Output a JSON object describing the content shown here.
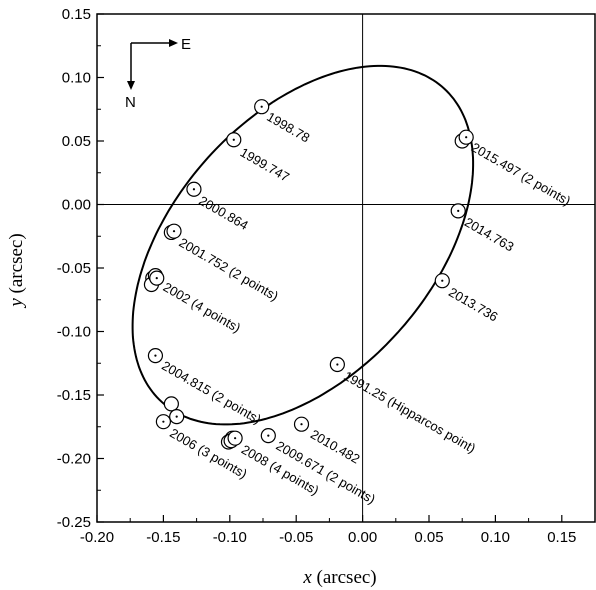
{
  "chart_data": {
    "type": "scatter",
    "xlabel_var": "x",
    "xlabel_unit": " (arcsec)",
    "ylabel_var": "y",
    "ylabel_unit": " (arcsec)",
    "xlim": [
      -0.2,
      0.175
    ],
    "ylim": [
      -0.25,
      0.15
    ],
    "xticks": [
      "-0.20",
      "-0.15",
      "-0.10",
      "-0.05",
      "0.00",
      "0.05",
      "0.10",
      "0.15"
    ],
    "yticks": [
      "-0.25",
      "-0.20",
      "-0.15",
      "-0.10",
      "-0.05",
      "0.00",
      "0.05",
      "0.10",
      "0.15"
    ],
    "compass": {
      "east": "E",
      "north": "N"
    },
    "orbit": {
      "center": [
        -0.045,
        -0.032
      ],
      "semi_major": 0.163,
      "semi_minor": 0.099,
      "rotation_deg": 51
    },
    "points": [
      {
        "x": -0.076,
        "y": 0.077,
        "dot": true
      },
      {
        "x": -0.097,
        "y": 0.051,
        "dot": true
      },
      {
        "x": -0.127,
        "y": 0.012,
        "dot": true
      },
      {
        "x": -0.144,
        "y": -0.022,
        "dot": false
      },
      {
        "x": -0.142,
        "y": -0.021,
        "dot": true
      },
      {
        "x": -0.158,
        "y": -0.058,
        "dot": false
      },
      {
        "x": -0.159,
        "y": -0.063,
        "dot": false
      },
      {
        "x": -0.156,
        "y": -0.056,
        "dot": false
      },
      {
        "x": -0.155,
        "y": -0.058,
        "dot": true
      },
      {
        "x": -0.156,
        "y": -0.119,
        "dot": true
      },
      {
        "x": -0.144,
        "y": -0.157,
        "dot": false
      },
      {
        "x": -0.14,
        "y": -0.167,
        "dot": true
      },
      {
        "x": -0.15,
        "y": -0.171,
        "dot": true
      },
      {
        "x": -0.101,
        "y": -0.187,
        "dot": false
      },
      {
        "x": -0.098,
        "y": -0.184,
        "dot": false
      },
      {
        "x": -0.099,
        "y": -0.186,
        "dot": false
      },
      {
        "x": -0.096,
        "y": -0.184,
        "dot": true
      },
      {
        "x": -0.071,
        "y": -0.182,
        "dot": true
      },
      {
        "x": -0.046,
        "y": -0.173,
        "dot": true
      },
      {
        "x": -0.019,
        "y": -0.126,
        "dot": true
      },
      {
        "x": 0.06,
        "y": -0.06,
        "dot": true
      },
      {
        "x": 0.072,
        "y": -0.005,
        "dot": true
      },
      {
        "x": 0.075,
        "y": 0.05,
        "dot": false
      },
      {
        "x": 0.078,
        "y": 0.053,
        "dot": true
      }
    ],
    "annotations": [
      {
        "text": "1998.78",
        "x": -0.073,
        "y": 0.067
      },
      {
        "text": "1999.747",
        "x": -0.093,
        "y": 0.039
      },
      {
        "text": "2000.864",
        "x": -0.124,
        "y": 0.001
      },
      {
        "text": "2001.752 (2 points)",
        "x": -0.139,
        "y": -0.032
      },
      {
        "text": "2002 (4 points)",
        "x": -0.151,
        "y": -0.067
      },
      {
        "text": "2004.815 (2 points)",
        "x": -0.152,
        "y": -0.129
      },
      {
        "text": "2006 (3 points)",
        "x": -0.146,
        "y": -0.182
      },
      {
        "text": "2008 (4 points)",
        "x": -0.092,
        "y": -0.195
      },
      {
        "text": "2009.671 (2 points)",
        "x": -0.066,
        "y": -0.192
      },
      {
        "text": "2010.482",
        "x": -0.04,
        "y": -0.183
      },
      {
        "text": "1991.25 (Hipparcos point)",
        "x": -0.015,
        "y": -0.137
      },
      {
        "text": "2013.736",
        "x": 0.064,
        "y": -0.071
      },
      {
        "text": "2014.763",
        "x": 0.076,
        "y": -0.016
      },
      {
        "text": "2015.497 (2 points)",
        "x": 0.081,
        "y": 0.043
      }
    ]
  }
}
